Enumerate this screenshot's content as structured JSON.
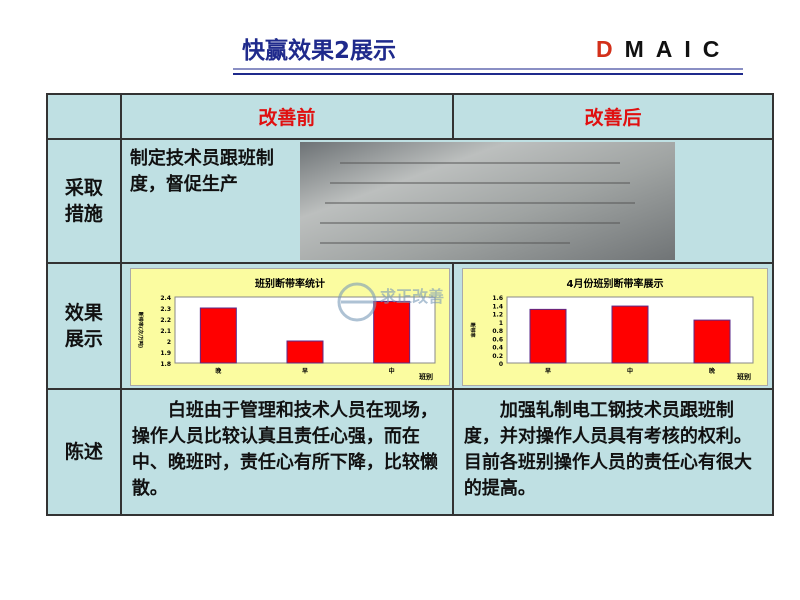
{
  "header": {
    "title": "快赢效果2展示",
    "logo_first": "D",
    "logo_rest": "MAIC"
  },
  "table": {
    "col_headers": [
      "改善前",
      "改善后"
    ],
    "rows": [
      {
        "label": "采取措施",
        "before": "制定技术员跟班制度，督促生产"
      },
      {
        "label": "效果展示"
      },
      {
        "label": "陈述",
        "before": "白班由于管理和技术人员在现场，操作人员比较认真且责任心强，而在中、晚班时，责任心有所下降，比较懒散。",
        "after": "加强轧制电工钢技术员跟班制度，并对操作人员具有考核的权利。目前各班别操作人员的责任心有很大的提高。"
      }
    ]
  },
  "watermark": {
    "text": "求正改善"
  },
  "colors": {
    "title": "#1f2a8c",
    "header_red": "#e01010",
    "table_bg": "#bfe0e3",
    "chart_bg": "#fbfca0",
    "bar": "#ff0000"
  },
  "chart_data": [
    {
      "type": "bar",
      "title": "班别断带率统计",
      "xlabel": "班别",
      "ylabel": "断带率(次/万吨)",
      "categories": [
        "晚",
        "早",
        "中"
      ],
      "values": [
        2.3,
        2.0,
        2.36
      ],
      "ylim": [
        1.8,
        2.4
      ],
      "yticks": [
        "2.4",
        "2.3",
        "2.2",
        "2.1",
        "2",
        "1.9",
        "1.8"
      ],
      "grid": false
    },
    {
      "type": "bar",
      "title": "4月份班别断带率展示",
      "xlabel": "班别",
      "ylabel": "断带率",
      "categories": [
        "早",
        "中",
        "晚"
      ],
      "values": [
        1.3,
        1.38,
        1.04
      ],
      "ylim": [
        0,
        1.6
      ],
      "yticks": [
        "1.6",
        "1.4",
        "1.2",
        "1",
        "0.8",
        "0.6",
        "0.4",
        "0.2",
        "0"
      ],
      "grid": false
    }
  ]
}
